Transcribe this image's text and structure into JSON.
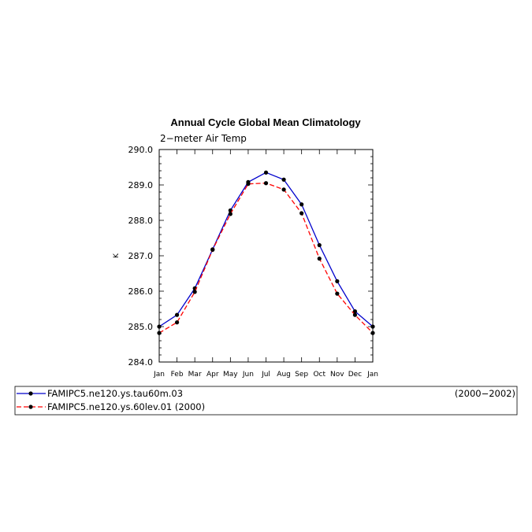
{
  "chart_data": {
    "type": "line",
    "title": "Annual Cycle Global Mean Climatology",
    "subtitle": "2−meter Air Temp",
    "ylabel": "K",
    "xlabel": "",
    "ylim": [
      284.0,
      290.0
    ],
    "yticks": [
      "284.0",
      "285.0",
      "286.0",
      "287.0",
      "288.0",
      "289.0",
      "290.0"
    ],
    "categories": [
      "Jan",
      "Feb",
      "Mar",
      "Apr",
      "May",
      "Jun",
      "Jul",
      "Aug",
      "Sep",
      "Oct",
      "Nov",
      "Dec",
      "Jan"
    ],
    "grid": false,
    "legend_position": "bottom",
    "series": [
      {
        "name": "FAMIPC5.ne120.ys.tau60m.03",
        "period": "(2000−2002)",
        "color": "#0000cc",
        "dash": "solid",
        "values": [
          285.0,
          285.33,
          286.08,
          287.18,
          288.28,
          289.08,
          289.35,
          289.15,
          288.45,
          287.3,
          286.28,
          285.43,
          285.0
        ]
      },
      {
        "name": "FAMIPC5.ne120.ys.60lev.01 (2000)",
        "period": "",
        "color": "#ff0000",
        "dash": "dashed",
        "values": [
          284.82,
          285.12,
          285.98,
          287.17,
          288.18,
          289.03,
          289.05,
          288.87,
          288.2,
          286.92,
          285.93,
          285.33,
          284.82
        ]
      }
    ]
  }
}
